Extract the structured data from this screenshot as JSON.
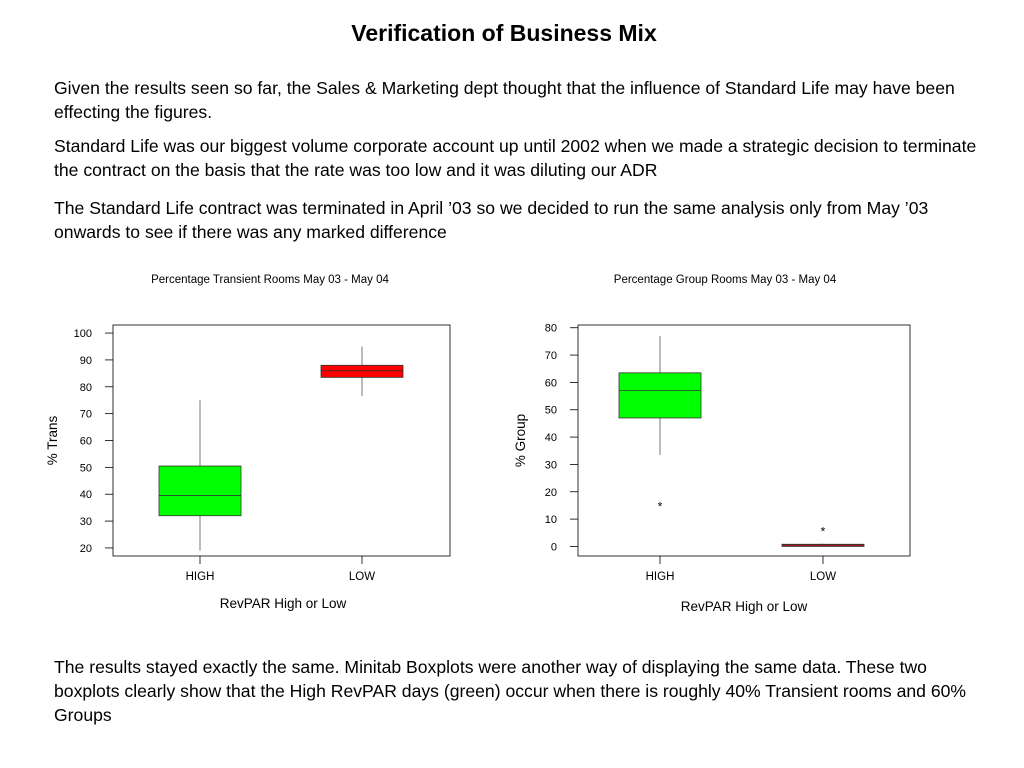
{
  "title": "Verification of Business Mix",
  "paragraphs": {
    "p1": "Given the results seen so far, the Sales & Marketing dept thought that the influence of Standard Life may have been effecting the figures.",
    "p2": "Standard Life was our biggest volume corporate account up until 2002 when we made a strategic decision to terminate the contract on the basis that the rate was too low and it was diluting our ADR",
    "p3": "The Standard Life contract was terminated in April ’03 so we decided to run the same analysis only from May ’03 onwards to see if there was any marked difference",
    "p4": "The results stayed exactly the same. Minitab Boxplots were another way of displaying the same data. These two boxplots clearly show that the High RevPAR days (green) occur when there is roughly 40% Transient rooms and 60% Groups"
  },
  "chart_data": [
    {
      "type": "boxplot",
      "title": "Percentage Transient Rooms May 03 - May 04",
      "xlabel": "RevPAR High or Low",
      "ylabel": "% Trans",
      "categories": [
        "HIGH",
        "LOW"
      ],
      "yticks": [
        20,
        30,
        40,
        50,
        60,
        70,
        80,
        90,
        100
      ],
      "ylim": [
        17,
        103
      ],
      "grid": false,
      "boxes": [
        {
          "category": "HIGH",
          "min": 19,
          "q1": 32,
          "median": 39.5,
          "q3": 50.5,
          "max": 75,
          "color": "#00ff00",
          "outliers": []
        },
        {
          "category": "LOW",
          "min": 76.5,
          "q1": 83.5,
          "median": 86,
          "q3": 88,
          "max": 95,
          "color": "#ff0000",
          "outliers": []
        }
      ]
    },
    {
      "type": "boxplot",
      "title": "Percentage Group Rooms May 03 - May 04",
      "xlabel": "RevPAR High or Low",
      "ylabel": "% Group",
      "categories": [
        "HIGH",
        "LOW"
      ],
      "yticks": [
        0,
        10,
        20,
        30,
        40,
        50,
        60,
        70,
        80
      ],
      "ylim": [
        -3.5,
        81
      ],
      "grid": false,
      "boxes": [
        {
          "category": "HIGH",
          "min": 33.5,
          "q1": 47,
          "median": 57,
          "q3": 63.5,
          "max": 77,
          "color": "#00ff00",
          "outliers": [
            16
          ]
        },
        {
          "category": "LOW",
          "min": 0,
          "q1": 0,
          "median": 0.5,
          "q3": 0.8,
          "max": 1,
          "color": "#ff0000",
          "outliers": [
            7
          ]
        }
      ]
    }
  ]
}
